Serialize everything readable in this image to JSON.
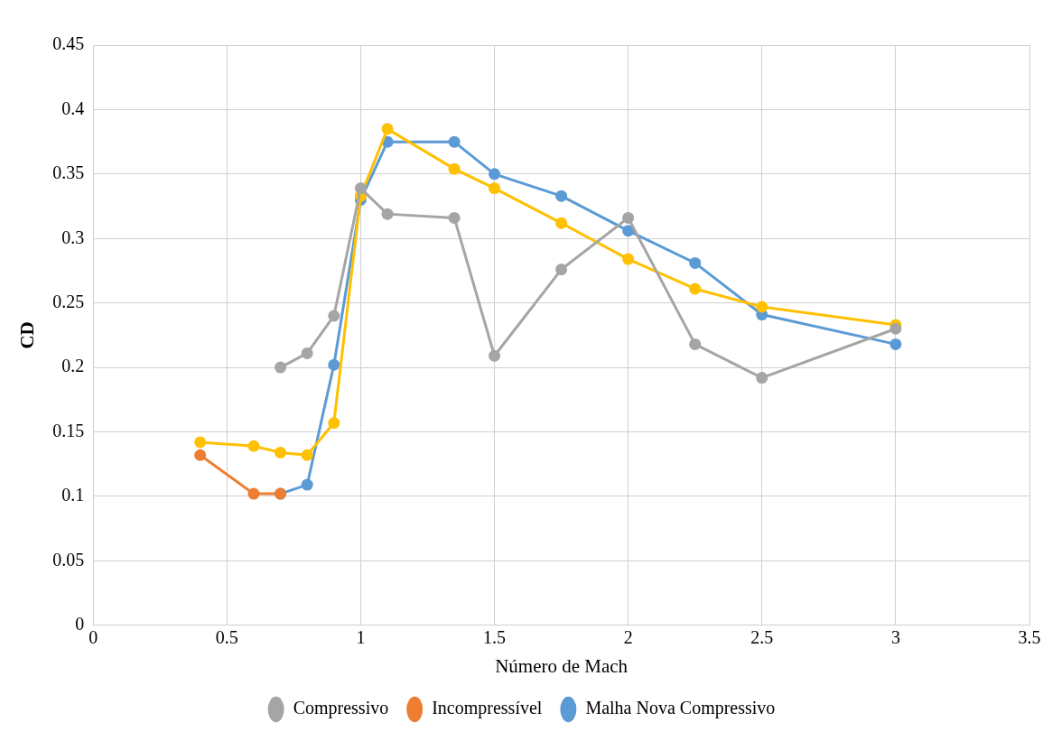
{
  "chart_data": {
    "type": "line",
    "xlabel": "Número de Mach",
    "ylabel": "CD",
    "xlim": [
      0,
      3.5
    ],
    "xticks": [
      0,
      0.5,
      1,
      1.5,
      2,
      2.5,
      3,
      3.5
    ],
    "ylim": [
      0,
      0.45
    ],
    "yticks": [
      0,
      0.05,
      0.1,
      0.15,
      0.2,
      0.25,
      0.3,
      0.35,
      0.4,
      0.45
    ],
    "grid": true,
    "legend": "bottom",
    "marker": "circle",
    "line_style": "solid",
    "series": [
      {
        "name": "Compressivo",
        "color": "#a5a5a5",
        "x": [
          0.7,
          0.8,
          0.9,
          1,
          1.1,
          1.35,
          1.5,
          1.75,
          2,
          2.25,
          2.5,
          3
        ],
        "values": [
          0.2,
          0.211,
          0.24,
          0.339,
          0.319,
          0.316,
          0.209,
          0.276,
          0.316,
          0.218,
          0.192,
          0.23
        ]
      },
      {
        "color": "#ffc000",
        "x": [
          0.4,
          0.6,
          0.7,
          0.8,
          0.9,
          1,
          1.1,
          1.35,
          1.5,
          1.75,
          2,
          2.25,
          2.5,
          3
        ],
        "values": [
          0.142,
          0.139,
          0.134,
          0.132,
          0.157,
          0.333,
          0.385,
          0.354,
          0.339,
          0.312,
          0.284,
          0.261,
          0.247,
          0.233
        ]
      },
      {
        "name": "Incompressível",
        "color": "#ed7d31",
        "x": [
          0.4,
          0.6,
          0.7
        ],
        "values": [
          0.132,
          0.102,
          0.102
        ]
      },
      {
        "name": "Malha Nova Compressivo",
        "color": "#5b9bd5",
        "x": [
          0.7,
          0.8,
          0.9,
          1,
          1.1,
          1.35,
          1.5,
          1.75,
          2,
          2.25,
          2.5,
          3
        ],
        "values": [
          0.102,
          0.109,
          0.202,
          0.33,
          0.375,
          0.375,
          0.35,
          0.333,
          0.306,
          0.281,
          0.241,
          0.218
        ]
      }
    ]
  }
}
